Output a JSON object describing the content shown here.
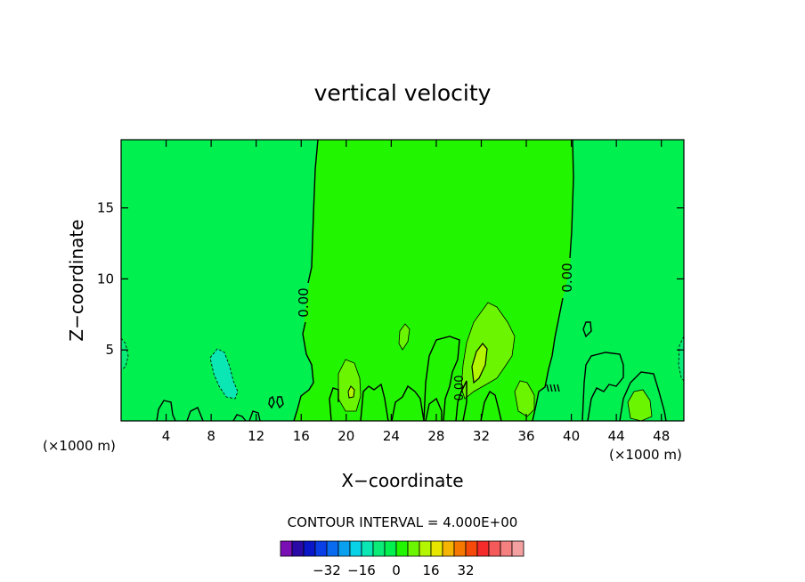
{
  "chart_data": {
    "type": "heatmap",
    "title": "vertical velocity",
    "xlabel": "X−coordinate",
    "ylabel": "Z−coordinate",
    "x_unit": "(×1000 m)",
    "y_unit": "(×1000 m)",
    "xlim": [
      0,
      50
    ],
    "ylim": [
      0,
      19.8
    ],
    "xticks": [
      "4",
      "8",
      "12",
      "16",
      "20",
      "24",
      "28",
      "32",
      "36",
      "40",
      "44",
      "48"
    ],
    "yticks": [
      "5",
      "10",
      "15"
    ],
    "contour_interval_label": "CONTOUR INTERVAL = 4.000E+00",
    "contour_labels": [
      "0.00",
      "0.00",
      "0.00"
    ],
    "colorbar": {
      "colors": [
        "#7a0fb4",
        "#2a0aa6",
        "#0a17c8",
        "#0a3ee6",
        "#0a6af0",
        "#0aa0f0",
        "#0ad2e6",
        "#0ae6b4",
        "#0aeb78",
        "#00f050",
        "#22f500",
        "#6cf500",
        "#b4f500",
        "#e6e600",
        "#f5b400",
        "#f57800",
        "#f54a0a",
        "#f52a2a",
        "#f55a5a",
        "#f58080",
        "#f5a0a0"
      ],
      "tick_labels": [
        "−32",
        "−16",
        "0",
        "16",
        "32"
      ]
    },
    "background_color": "#00f050",
    "central_region_color": "#22f500"
  }
}
